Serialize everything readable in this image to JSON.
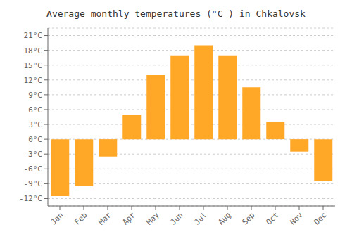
{
  "chart_data": {
    "type": "bar",
    "title": "Average monthly temperatures (°C ) in Chkalovsk",
    "categories": [
      "Jan",
      "Feb",
      "Mar",
      "Apr",
      "May",
      "Jun",
      "Jul",
      "Aug",
      "Sep",
      "Oct",
      "Nov",
      "Dec"
    ],
    "values": [
      -11.5,
      -9.5,
      -3.5,
      5.0,
      13.0,
      17.0,
      19.0,
      17.0,
      10.5,
      3.5,
      -2.5,
      -8.5
    ],
    "color": "#FFA726",
    "ylim": [
      -13.5,
      22.5
    ],
    "yticks": [
      {
        "value": -12,
        "label": "-12°C"
      },
      {
        "value": -9,
        "label": "-9°C"
      },
      {
        "value": -6,
        "label": "-6°C"
      },
      {
        "value": -3,
        "label": "-3°C"
      },
      {
        "value": 0,
        "label": "0°C"
      },
      {
        "value": 3,
        "label": "3°C"
      },
      {
        "value": 6,
        "label": "6°C"
      },
      {
        "value": 9,
        "label": "9°C"
      },
      {
        "value": 12,
        "label": "12°C"
      },
      {
        "value": 15,
        "label": "15°C"
      },
      {
        "value": 18,
        "label": "18°C"
      },
      {
        "value": 21,
        "label": "21°C"
      }
    ],
    "grid": true
  }
}
